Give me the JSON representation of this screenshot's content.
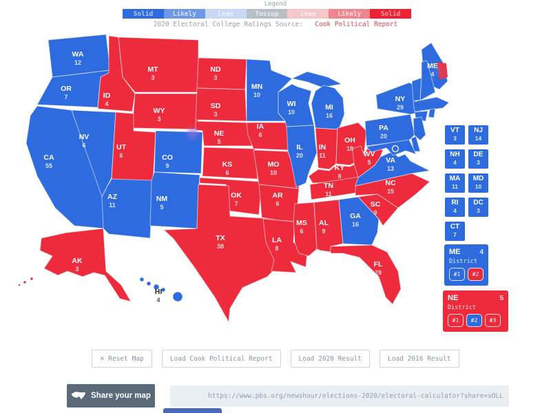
{
  "legend": {
    "title": "Legend",
    "segments": [
      {
        "label": "Solid",
        "color": "#2d6bdf",
        "text_color": "#aecbf7"
      },
      {
        "label": "Likely",
        "color": "#6f97e8",
        "text_color": "#d3e0fa"
      },
      {
        "label": "Lean",
        "color": "#c9d9f5",
        "text_color": "#ecf2fc"
      },
      {
        "label": "Tossup",
        "color": "#b7bec8",
        "text_color": "#e8ebef"
      },
      {
        "label": "Lean",
        "color": "#f6c6c9",
        "text_color": "#fdf0f0"
      },
      {
        "label": "Likely",
        "color": "#f0868d",
        "text_color": "#fbd9db"
      },
      {
        "label": "Solid",
        "color": "#ee2132",
        "text_color": "#f9a0a8"
      }
    ],
    "source_prefix": "2020 Electoral College Ratings Source:",
    "source_link": "Cook Political Report"
  },
  "colors": {
    "dem": "#2d6bdf",
    "rep": "#ee2b3c",
    "label": "#ffffff",
    "label_dark": "#2b2b2b",
    "partial_button": "#4a69b8"
  },
  "map": {
    "states": [
      {
        "abbr": "WA",
        "ev": 12,
        "party": "dem"
      },
      {
        "abbr": "OR",
        "ev": 7,
        "party": "dem"
      },
      {
        "abbr": "CA",
        "ev": 55,
        "party": "dem"
      },
      {
        "abbr": "NV",
        "ev": 6,
        "party": "dem"
      },
      {
        "abbr": "ID",
        "ev": 4,
        "party": "rep"
      },
      {
        "abbr": "MT",
        "ev": 3,
        "party": "rep"
      },
      {
        "abbr": "WY",
        "ev": 3,
        "party": "rep"
      },
      {
        "abbr": "UT",
        "ev": 6,
        "party": "rep"
      },
      {
        "abbr": "CO",
        "ev": 9,
        "party": "dem"
      },
      {
        "abbr": "AZ",
        "ev": 11,
        "party": "dem"
      },
      {
        "abbr": "NM",
        "ev": 5,
        "party": "dem"
      },
      {
        "abbr": "ND",
        "ev": 3,
        "party": "rep"
      },
      {
        "abbr": "SD",
        "ev": 3,
        "party": "rep"
      },
      {
        "abbr": "NE",
        "ev": 5,
        "party": "rep"
      },
      {
        "abbr": "KS",
        "ev": 6,
        "party": "rep"
      },
      {
        "abbr": "OK",
        "ev": 7,
        "party": "rep"
      },
      {
        "abbr": "TX",
        "ev": 38,
        "party": "rep"
      },
      {
        "abbr": "MN",
        "ev": 10,
        "party": "dem"
      },
      {
        "abbr": "IA",
        "ev": 6,
        "party": "rep"
      },
      {
        "abbr": "MO",
        "ev": 10,
        "party": "rep"
      },
      {
        "abbr": "AR",
        "ev": 6,
        "party": "rep"
      },
      {
        "abbr": "LA",
        "ev": 8,
        "party": "rep"
      },
      {
        "abbr": "WI",
        "ev": 10,
        "party": "dem"
      },
      {
        "abbr": "IL",
        "ev": 20,
        "party": "dem"
      },
      {
        "abbr": "MS",
        "ev": 6,
        "party": "rep"
      },
      {
        "abbr": "MI",
        "ev": 16,
        "party": "dem"
      },
      {
        "abbr": "IN",
        "ev": 11,
        "party": "rep"
      },
      {
        "abbr": "OH",
        "ev": 18,
        "party": "rep"
      },
      {
        "abbr": "KY",
        "ev": 8,
        "party": "rep"
      },
      {
        "abbr": "TN",
        "ev": 11,
        "party": "rep"
      },
      {
        "abbr": "AL",
        "ev": 9,
        "party": "rep"
      },
      {
        "abbr": "GA",
        "ev": 16,
        "party": "dem"
      },
      {
        "abbr": "FL",
        "ev": 29,
        "party": "rep"
      },
      {
        "abbr": "SC",
        "ev": 9,
        "party": "rep"
      },
      {
        "abbr": "NC",
        "ev": 15,
        "party": "rep"
      },
      {
        "abbr": "VA",
        "ev": 13,
        "party": "dem"
      },
      {
        "abbr": "WV",
        "ev": 5,
        "party": "rep"
      },
      {
        "abbr": "PA",
        "ev": 20,
        "party": "dem"
      },
      {
        "abbr": "NY",
        "ev": 29,
        "party": "dem"
      },
      {
        "abbr": "ME",
        "ev": 4,
        "party": "dem"
      },
      {
        "abbr": "AK",
        "ev": 3,
        "party": "rep"
      },
      {
        "abbr": "HI",
        "ev": 4,
        "party": "dem"
      },
      {
        "abbr": "VT",
        "ev": 3,
        "party": "dem"
      },
      {
        "abbr": "NH",
        "ev": 4,
        "party": "dem"
      },
      {
        "abbr": "MA",
        "ev": 11,
        "party": "dem"
      },
      {
        "abbr": "CT",
        "ev": 7,
        "party": "dem"
      },
      {
        "abbr": "RI",
        "ev": 4,
        "party": "dem"
      },
      {
        "abbr": "NJ",
        "ev": 14,
        "party": "dem"
      },
      {
        "abbr": "DE",
        "ev": 3,
        "party": "dem"
      },
      {
        "abbr": "MD",
        "ev": 10,
        "party": "dem"
      }
    ]
  },
  "small_state_tiles": [
    {
      "abbr": "VT",
      "ev": 3,
      "party": "dem"
    },
    {
      "abbr": "NJ",
      "ev": 14,
      "party": "dem"
    },
    {
      "abbr": "NH",
      "ev": 4,
      "party": "dem"
    },
    {
      "abbr": "DE",
      "ev": 3,
      "party": "dem"
    },
    {
      "abbr": "MA",
      "ev": 11,
      "party": "dem"
    },
    {
      "abbr": "MD",
      "ev": 10,
      "party": "dem"
    },
    {
      "abbr": "RI",
      "ev": 4,
      "party": "dem"
    },
    {
      "abbr": "DC",
      "ev": 3,
      "party": "dem"
    },
    {
      "abbr": "CT",
      "ev": 7,
      "party": "dem"
    }
  ],
  "district_boxes": [
    {
      "abbr": "ME",
      "ev": 4,
      "party": "dem",
      "label": "District",
      "buttons": [
        {
          "label": "#1",
          "party": "dem"
        },
        {
          "label": "#2",
          "party": "rep"
        }
      ]
    },
    {
      "abbr": "NE",
      "ev": 5,
      "party": "rep",
      "label": "District",
      "buttons": [
        {
          "label": "#1",
          "party": "rep"
        },
        {
          "label": "#2",
          "party": "dem"
        },
        {
          "label": "#3",
          "party": "rep"
        }
      ]
    }
  ],
  "actions": [
    {
      "label": "Reset Map",
      "icon": "×"
    },
    {
      "label": "Load Cook Political Report"
    },
    {
      "label": "Load 2020 Result"
    },
    {
      "label": "Load 2016 Result"
    }
  ],
  "share": {
    "button_label": "Share your map",
    "url": "https://www.pbs.org/newshour/elections-2020/electoral-calculator?share=sOLLOLps"
  }
}
